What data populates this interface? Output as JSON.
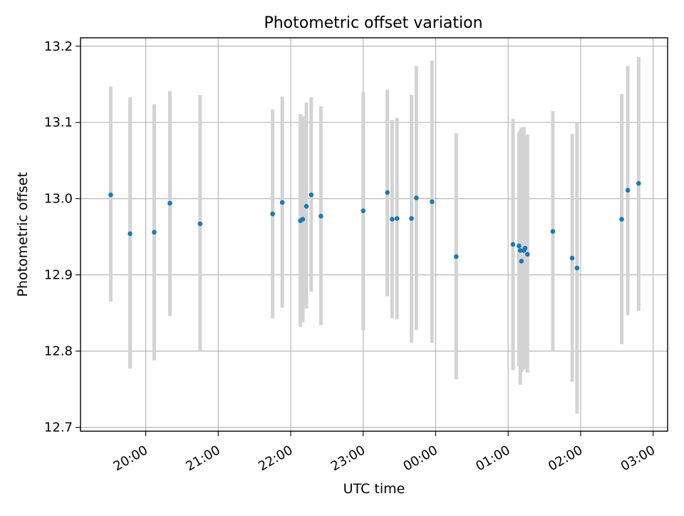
{
  "chart_data": {
    "type": "scatter",
    "title": "Photometric offset variation",
    "xlabel": "UTC time",
    "ylabel": "Photometric offset",
    "x_tick_labels": [
      "20:00",
      "21:00",
      "22:00",
      "23:00",
      "00:00",
      "01:00",
      "02:00",
      "03:00"
    ],
    "x_tick_hours": [
      20,
      21,
      22,
      23,
      24,
      25,
      26,
      27
    ],
    "y_tick_labels": [
      "12.7",
      "12.8",
      "12.9",
      "13.0",
      "13.1",
      "13.2"
    ],
    "y_ticks": [
      12.7,
      12.8,
      12.9,
      13.0,
      13.1,
      13.2
    ],
    "xlim_hours": [
      19.1,
      27.2
    ],
    "ylim": [
      12.695,
      13.211
    ],
    "grid": true,
    "colors": {
      "points": "#1f77b4",
      "errorbars": "#d3d3d3",
      "grid": "#b0b0b0"
    },
    "series": [
      {
        "x": [
          "19:31",
          "19:47",
          "20:07",
          "20:20",
          "20:45",
          "21:45",
          "21:53",
          "22:08",
          "22:10",
          "22:13",
          "22:17",
          "22:25",
          "23:00",
          "23:20",
          "23:24",
          "23:28",
          "23:40",
          "23:44",
          "23:57",
          "00:17",
          "01:04",
          "01:09",
          "01:10",
          "01:11",
          "01:13",
          "01:14",
          "01:16",
          "01:37",
          "01:53",
          "01:57",
          "02:34",
          "02:39",
          "02:48"
        ],
        "y": [
          13.005,
          12.954,
          12.956,
          12.994,
          12.967,
          12.98,
          12.995,
          12.971,
          12.973,
          12.99,
          13.005,
          12.977,
          12.984,
          13.008,
          12.973,
          12.974,
          12.974,
          13.001,
          12.996,
          12.924,
          12.94,
          12.938,
          12.932,
          12.918,
          12.932,
          12.935,
          12.927,
          12.957,
          12.922,
          12.909,
          12.973,
          13.011,
          13.02
        ],
        "y_low": [
          12.865,
          12.777,
          12.788,
          12.846,
          12.8,
          12.843,
          12.857,
          12.832,
          12.838,
          12.856,
          12.878,
          12.834,
          12.827,
          12.872,
          12.843,
          12.842,
          12.811,
          12.828,
          12.811,
          12.763,
          12.775,
          12.78,
          12.756,
          12.773,
          12.776,
          12.78,
          12.772,
          12.8,
          12.76,
          12.718,
          12.809,
          12.847,
          12.853
        ],
        "y_high": [
          13.147,
          13.133,
          13.124,
          13.141,
          13.136,
          13.117,
          13.134,
          13.111,
          13.108,
          13.126,
          13.133,
          13.121,
          13.14,
          13.143,
          13.103,
          13.106,
          13.136,
          13.174,
          13.181,
          13.086,
          13.105,
          13.087,
          13.09,
          13.093,
          13.094,
          13.082,
          13.084,
          13.115,
          13.085,
          13.1,
          13.137,
          13.174,
          13.186
        ]
      }
    ]
  }
}
